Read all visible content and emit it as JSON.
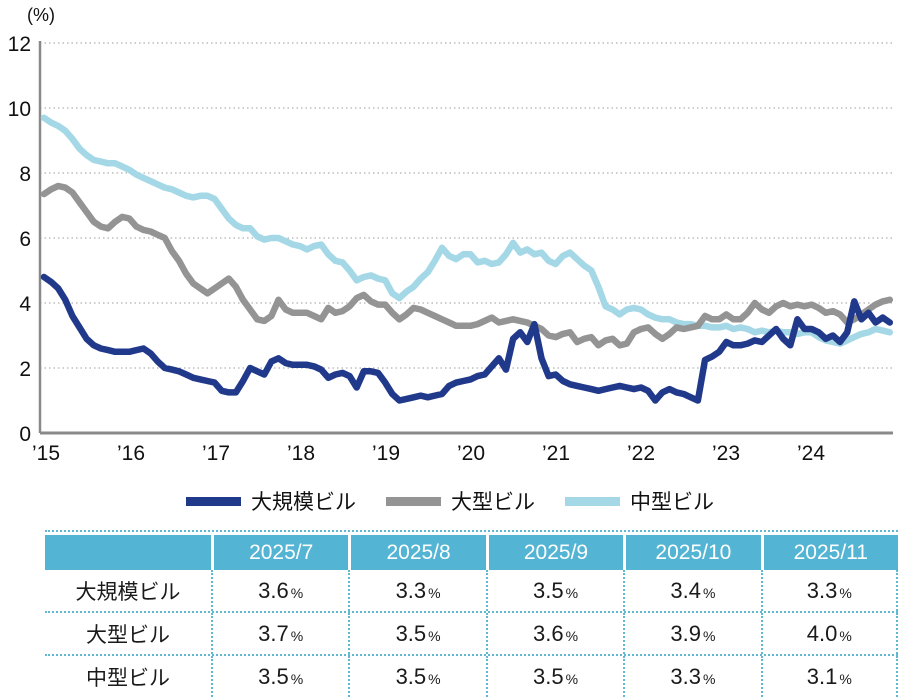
{
  "chart_data": {
    "type": "line",
    "title": "",
    "ylabel": "(%)",
    "unit_label": "(%)",
    "ylim": [
      0,
      12
    ],
    "y_ticks": [
      0,
      2,
      4,
      6,
      8,
      10,
      12
    ],
    "x_tick_labels": [
      "’15",
      "’16",
      "’17",
      "’18",
      "’19",
      "’20",
      "’21",
      "’22",
      "’23",
      "’24"
    ],
    "x_start": "2015-01",
    "x_end": "2024-12",
    "grid": "horizontal-dotted",
    "legend_position": "bottom",
    "axis_color": "#8a8a8a",
    "grid_color": "#b0b0b0",
    "series": [
      {
        "key": "large-scale",
        "name": "大規模ビル",
        "color": "#21398b",
        "values": [
          4.8,
          4.65,
          4.45,
          4.1,
          3.6,
          3.25,
          2.9,
          2.7,
          2.6,
          2.55,
          2.5,
          2.5,
          2.5,
          2.55,
          2.6,
          2.45,
          2.2,
          2.0,
          1.95,
          1.9,
          1.8,
          1.7,
          1.65,
          1.6,
          1.55,
          1.3,
          1.25,
          1.25,
          1.6,
          2.0,
          1.9,
          1.8,
          2.2,
          2.3,
          2.15,
          2.1,
          2.1,
          2.1,
          2.05,
          1.95,
          1.7,
          1.8,
          1.85,
          1.75,
          1.4,
          1.9,
          1.9,
          1.85,
          1.55,
          1.2,
          1.0,
          1.05,
          1.1,
          1.15,
          1.1,
          1.15,
          1.2,
          1.45,
          1.55,
          1.6,
          1.65,
          1.75,
          1.8,
          2.05,
          2.3,
          1.95,
          2.9,
          3.1,
          2.8,
          3.35,
          2.3,
          1.75,
          1.8,
          1.6,
          1.5,
          1.45,
          1.4,
          1.35,
          1.3,
          1.35,
          1.4,
          1.45,
          1.4,
          1.35,
          1.4,
          1.3,
          1.0,
          1.25,
          1.35,
          1.25,
          1.2,
          1.1,
          1.0,
          2.25,
          2.35,
          2.5,
          2.8,
          2.7,
          2.7,
          2.75,
          2.85,
          2.8,
          3.0,
          3.2,
          2.9,
          2.7,
          3.5,
          3.2,
          3.2,
          3.1,
          2.9,
          3.0,
          2.8,
          3.1,
          4.05,
          3.5,
          3.7,
          3.4,
          3.55,
          3.4
        ]
      },
      {
        "key": "large",
        "name": "大型ビル",
        "color": "#949494",
        "values": [
          7.35,
          7.5,
          7.6,
          7.55,
          7.4,
          7.1,
          6.8,
          6.5,
          6.35,
          6.3,
          6.5,
          6.65,
          6.6,
          6.35,
          6.25,
          6.2,
          6.1,
          6.0,
          5.6,
          5.3,
          4.9,
          4.6,
          4.45,
          4.3,
          4.45,
          4.6,
          4.75,
          4.5,
          4.1,
          3.8,
          3.5,
          3.45,
          3.6,
          4.1,
          3.8,
          3.7,
          3.7,
          3.7,
          3.6,
          3.5,
          3.85,
          3.7,
          3.75,
          3.9,
          4.15,
          4.25,
          4.05,
          3.95,
          3.95,
          3.7,
          3.5,
          3.65,
          3.85,
          3.8,
          3.7,
          3.6,
          3.5,
          3.4,
          3.3,
          3.3,
          3.3,
          3.35,
          3.45,
          3.55,
          3.4,
          3.45,
          3.5,
          3.45,
          3.4,
          3.3,
          3.2,
          3.0,
          2.95,
          3.05,
          3.1,
          2.8,
          2.9,
          2.95,
          2.7,
          2.85,
          2.9,
          2.7,
          2.75,
          3.1,
          3.2,
          3.25,
          3.05,
          2.9,
          3.05,
          3.25,
          3.2,
          3.25,
          3.3,
          3.6,
          3.5,
          3.5,
          3.65,
          3.5,
          3.5,
          3.7,
          4.0,
          3.8,
          3.7,
          3.9,
          4.0,
          3.9,
          3.95,
          3.9,
          3.95,
          3.85,
          3.7,
          3.75,
          3.65,
          3.4,
          3.5,
          3.65,
          3.8,
          3.95,
          4.05,
          4.1
        ]
      },
      {
        "key": "medium",
        "name": "中型ビル",
        "color": "#a5d8e6",
        "values": [
          9.7,
          9.55,
          9.45,
          9.3,
          9.05,
          8.75,
          8.55,
          8.4,
          8.35,
          8.3,
          8.3,
          8.2,
          8.1,
          7.95,
          7.85,
          7.75,
          7.65,
          7.55,
          7.5,
          7.4,
          7.3,
          7.25,
          7.3,
          7.3,
          7.2,
          6.9,
          6.6,
          6.4,
          6.3,
          6.3,
          6.05,
          5.95,
          6.0,
          6.0,
          5.9,
          5.8,
          5.75,
          5.65,
          5.75,
          5.8,
          5.5,
          5.3,
          5.25,
          5.0,
          4.7,
          4.8,
          4.85,
          4.75,
          4.7,
          4.3,
          4.15,
          4.35,
          4.5,
          4.75,
          4.95,
          5.3,
          5.7,
          5.45,
          5.35,
          5.5,
          5.5,
          5.25,
          5.3,
          5.2,
          5.25,
          5.5,
          5.85,
          5.55,
          5.65,
          5.5,
          5.55,
          5.3,
          5.2,
          5.45,
          5.55,
          5.35,
          5.15,
          5.0,
          4.5,
          3.9,
          3.8,
          3.65,
          3.8,
          3.85,
          3.8,
          3.65,
          3.55,
          3.5,
          3.5,
          3.4,
          3.35,
          3.35,
          3.3,
          3.3,
          3.25,
          3.25,
          3.3,
          3.2,
          3.25,
          3.2,
          3.1,
          3.15,
          3.1,
          3.15,
          3.1,
          3.1,
          3.05,
          3.1,
          3.1,
          2.95,
          2.85,
          2.8,
          2.75,
          2.85,
          2.95,
          3.05,
          3.1,
          3.2,
          3.15,
          3.1
        ]
      }
    ]
  },
  "legend": {
    "items": [
      {
        "label": "大規模ビル",
        "color": "#21398b"
      },
      {
        "label": "大型ビル",
        "color": "#949494"
      },
      {
        "label": "中型ビル",
        "color": "#a5d8e6"
      }
    ]
  },
  "table": {
    "unit": "%",
    "columns": [
      "2025/7",
      "2025/8",
      "2025/9",
      "2025/10",
      "2025/11"
    ],
    "rows": [
      {
        "label": "大規模ビル",
        "values": [
          "3.6",
          "3.3",
          "3.5",
          "3.4",
          "3.3"
        ]
      },
      {
        "label": "大型ビル",
        "values": [
          "3.7",
          "3.5",
          "3.6",
          "3.9",
          "4.0"
        ]
      },
      {
        "label": "中型ビル",
        "values": [
          "3.5",
          "3.5",
          "3.5",
          "3.3",
          "3.1"
        ]
      }
    ],
    "header_bg": "#54b4d3",
    "border_color": "#5fb9d2"
  }
}
